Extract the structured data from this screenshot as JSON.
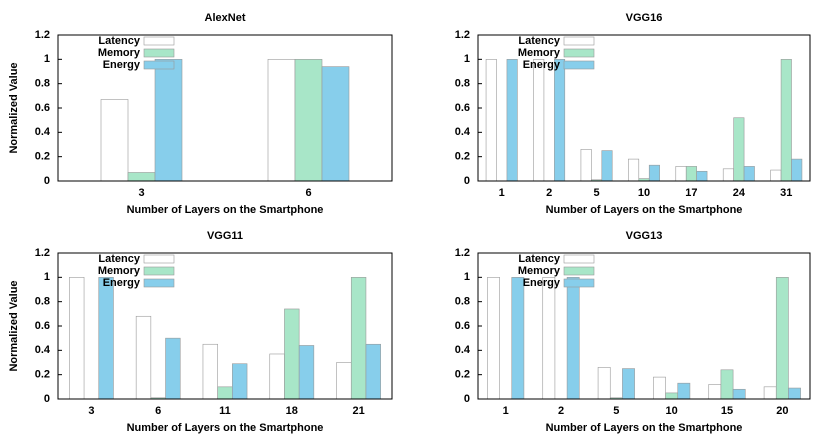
{
  "chart_data": [
    {
      "type": "bar",
      "title": "AlexNet",
      "x_label": "Number of Layers on the Smartphone",
      "y_label": "Normalized Value",
      "categories": [
        "3",
        "6"
      ],
      "series": [
        {
          "name": "Latency",
          "color": "#ffffff",
          "values": [
            0.67,
            1
          ]
        },
        {
          "name": "Memory",
          "color": "#a8e6c8",
          "values": [
            0.07,
            1
          ]
        },
        {
          "name": "Energy",
          "color": "#87ceeb",
          "values": [
            1,
            0.94
          ]
        }
      ],
      "ylim": [
        0,
        1.2
      ],
      "yticks": [
        0,
        0.2,
        0.4,
        0.6,
        0.8,
        1,
        1.2
      ],
      "legend": "upper-left"
    },
    {
      "type": "bar",
      "title": "VGG16",
      "x_label": "Number of Layers on the Smartphone",
      "categories": [
        "1",
        "2",
        "5",
        "10",
        "17",
        "24",
        "31"
      ],
      "series": [
        {
          "name": "Latency",
          "color": "#ffffff",
          "values": [
            1,
            1,
            0.26,
            0.18,
            0.12,
            0.1,
            0.09
          ]
        },
        {
          "name": "Memory",
          "color": "#a8e6c8",
          "values": [
            0,
            0,
            0.01,
            0.02,
            0.12,
            0.52,
            1
          ]
        },
        {
          "name": "Energy",
          "color": "#87ceeb",
          "values": [
            1,
            1,
            0.25,
            0.13,
            0.08,
            0.12,
            0.18
          ]
        }
      ],
      "ylim": [
        0,
        1.2
      ],
      "yticks": [
        0,
        0.2,
        0.4,
        0.6,
        0.8,
        1,
        1.2
      ],
      "legend": "upper-left"
    },
    {
      "type": "bar",
      "title": "VGG11",
      "x_label": "Number of Layers on the Smartphone",
      "y_label": "Normalized Value",
      "categories": [
        "3",
        "6",
        "11",
        "18",
        "21"
      ],
      "series": [
        {
          "name": "Latency",
          "color": "#ffffff",
          "values": [
            1,
            0.68,
            0.45,
            0.37,
            0.3
          ]
        },
        {
          "name": "Memory",
          "color": "#a8e6c8",
          "values": [
            0,
            0.01,
            0.1,
            0.74,
            1
          ]
        },
        {
          "name": "Energy",
          "color": "#87ceeb",
          "values": [
            1,
            0.5,
            0.29,
            0.44,
            0.45
          ]
        }
      ],
      "ylim": [
        0,
        1.2
      ],
      "yticks": [
        0,
        0.2,
        0.4,
        0.6,
        0.8,
        1,
        1.2
      ],
      "legend": "upper-left"
    },
    {
      "type": "bar",
      "title": "VGG13",
      "x_label": "Number of Layers on the Smartphone",
      "categories": [
        "1",
        "2",
        "5",
        "10",
        "15",
        "20"
      ],
      "series": [
        {
          "name": "Latency",
          "color": "#ffffff",
          "values": [
            1,
            1,
            0.26,
            0.18,
            0.12,
            0.1
          ]
        },
        {
          "name": "Memory",
          "color": "#a8e6c8",
          "values": [
            0,
            0,
            0.01,
            0.05,
            0.24,
            1
          ]
        },
        {
          "name": "Energy",
          "color": "#87ceeb",
          "values": [
            1,
            1,
            0.25,
            0.13,
            0.08,
            0.09
          ]
        }
      ],
      "ylim": [
        0,
        1.2
      ],
      "yticks": [
        0,
        0.2,
        0.4,
        0.6,
        0.8,
        1,
        1.2
      ],
      "legend": "upper-left"
    }
  ]
}
